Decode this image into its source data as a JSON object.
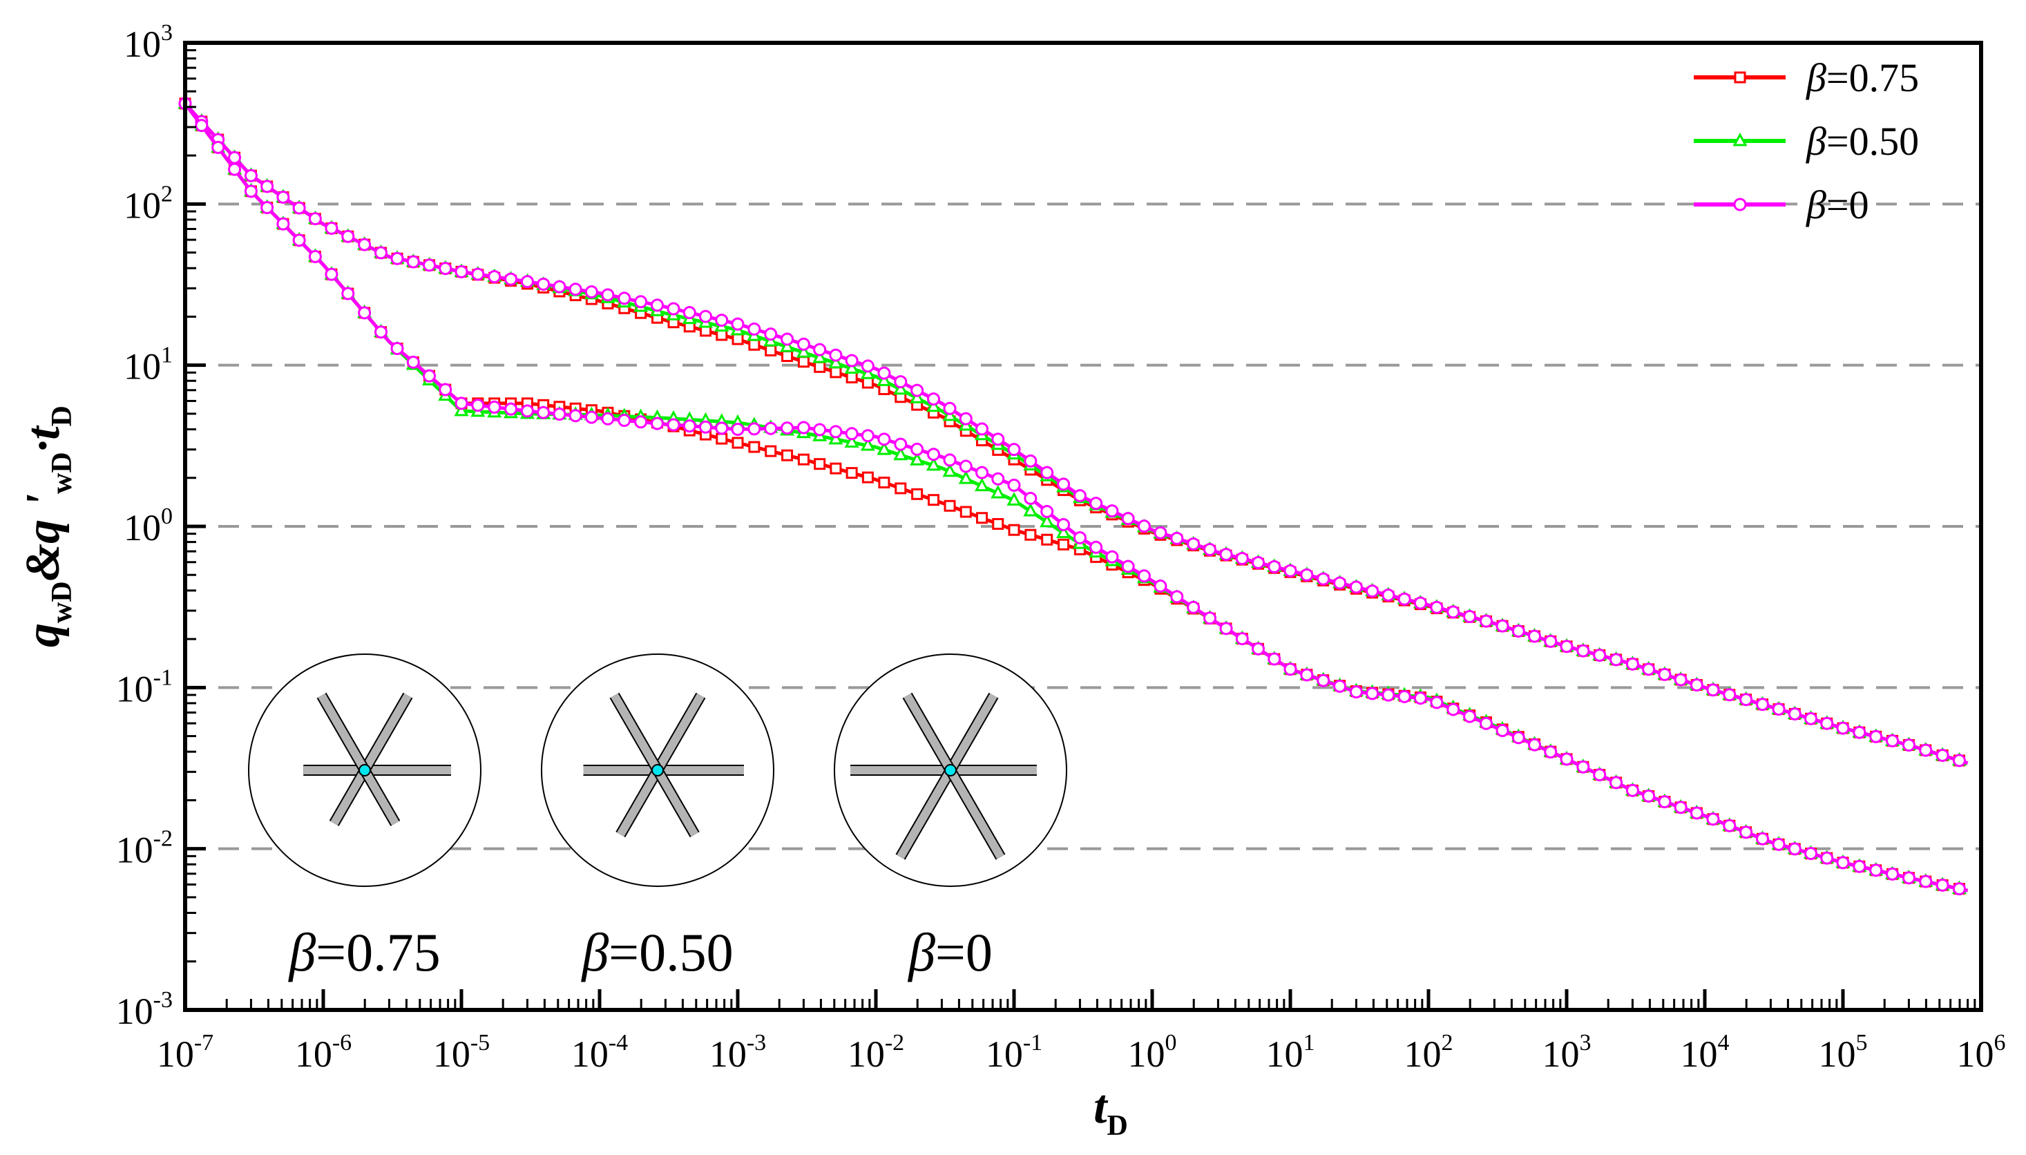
{
  "chart_data": {
    "type": "line",
    "title": "",
    "xlabel": {
      "main": "t",
      "sub": "D"
    },
    "ylabel": {
      "parts": [
        {
          "t": "q",
          "sub": "wD"
        },
        {
          "t": "&q",
          "sub": ""
        },
        {
          "t": " '",
          "sub": "wD"
        },
        {
          "t": "·t",
          "sub": "D"
        }
      ]
    },
    "xscale": "log",
    "yscale": "log",
    "xlim": [
      1e-07,
      1000000.0
    ],
    "ylim": [
      0.001,
      1000
    ],
    "x_ticks": [
      {
        "base": "10",
        "exp": "-7"
      },
      {
        "base": "10",
        "exp": "-6"
      },
      {
        "base": "10",
        "exp": "-5"
      },
      {
        "base": "10",
        "exp": "-4"
      },
      {
        "base": "10",
        "exp": "-3"
      },
      {
        "base": "10",
        "exp": "-2"
      },
      {
        "base": "10",
        "exp": "-1"
      },
      {
        "base": "10",
        "exp": "0"
      },
      {
        "base": "10",
        "exp": "1"
      },
      {
        "base": "10",
        "exp": "2"
      },
      {
        "base": "10",
        "exp": "3"
      },
      {
        "base": "10",
        "exp": "4"
      },
      {
        "base": "10",
        "exp": "5"
      },
      {
        "base": "10",
        "exp": "6"
      }
    ],
    "y_ticks": [
      {
        "base": "10",
        "exp": "-3"
      },
      {
        "base": "10",
        "exp": "-2"
      },
      {
        "base": "10",
        "exp": "-1"
      },
      {
        "base": "10",
        "exp": "0"
      },
      {
        "base": "10",
        "exp": "1"
      },
      {
        "base": "10",
        "exp": "2"
      },
      {
        "base": "10",
        "exp": "3"
      }
    ],
    "grid": "dashed horizontal at decades",
    "legend_position": "top-right",
    "series": [
      {
        "name": "β=0.75",
        "greek": "β",
        "value": "=0.75",
        "color": "#ff0000",
        "marker": "square",
        "curves": {
          "rate": [
            [
              1e-07,
              420
            ],
            [
              3e-07,
              150
            ],
            [
              1e-06,
              75
            ],
            [
              3e-06,
              47
            ],
            [
              1e-05,
              38
            ],
            [
              3e-05,
              32
            ],
            [
              0.0001,
              25
            ],
            [
              0.0003,
              19
            ],
            [
              0.001,
              14.5
            ],
            [
              0.003,
              10.5
            ],
            [
              0.01,
              7.5
            ],
            [
              0.03,
              4.8
            ],
            [
              0.1,
              2.6
            ],
            [
              0.3,
              1.45
            ],
            [
              1,
              0.92
            ],
            [
              3,
              0.68
            ],
            [
              10,
              0.52
            ],
            [
              30,
              0.41
            ],
            [
              100,
              0.32
            ],
            [
              300,
              0.25
            ],
            [
              1000,
              0.18
            ],
            [
              3000,
              0.14
            ],
            [
              10000.0,
              0.1
            ],
            [
              30000.0,
              0.076
            ],
            [
              100000.0,
              0.056
            ],
            [
              300000.0,
              0.044
            ],
            [
              800000.0,
              0.034
            ]
          ],
          "derivative": [
            [
              1e-07,
              420
            ],
            [
              3e-07,
              120
            ],
            [
              1e-06,
              42
            ],
            [
              3e-06,
              14
            ],
            [
              1e-05,
              5.8
            ],
            [
              3e-05,
              5.8
            ],
            [
              0.0001,
              5.2
            ],
            [
              0.0003,
              4.3
            ],
            [
              0.001,
              3.3
            ],
            [
              0.003,
              2.6
            ],
            [
              0.01,
              1.95
            ],
            [
              0.03,
              1.4
            ],
            [
              0.1,
              0.95
            ],
            [
              0.3,
              0.72
            ],
            [
              1,
              0.44
            ],
            [
              3,
              0.25
            ],
            [
              10,
              0.13
            ],
            [
              30,
              0.095
            ],
            [
              100,
              0.086
            ],
            [
              300,
              0.058
            ],
            [
              1000,
              0.036
            ],
            [
              3000,
              0.023
            ],
            [
              10000.0,
              0.016
            ],
            [
              30000.0,
              0.011
            ],
            [
              100000.0,
              0.0082
            ],
            [
              300000.0,
              0.0066
            ],
            [
              800000.0,
              0.0055
            ]
          ]
        }
      },
      {
        "name": "β=0.50",
        "greek": "β",
        "value": "=0.50",
        "color": "#00ee00",
        "marker": "triangle",
        "curves": {
          "rate": [
            [
              1e-07,
              420
            ],
            [
              3e-07,
              150
            ],
            [
              1e-06,
              75
            ],
            [
              3e-06,
              47
            ],
            [
              1e-05,
              38
            ],
            [
              3e-05,
              33
            ],
            [
              0.0001,
              27
            ],
            [
              0.0003,
              21
            ],
            [
              0.001,
              16.5
            ],
            [
              0.003,
              12
            ],
            [
              0.01,
              8.5
            ],
            [
              0.03,
              5.2
            ],
            [
              0.1,
              2.8
            ],
            [
              0.3,
              1.5
            ],
            [
              1,
              0.94
            ],
            [
              3,
              0.69
            ],
            [
              10,
              0.53
            ],
            [
              30,
              0.42
            ],
            [
              100,
              0.325
            ],
            [
              300,
              0.25
            ],
            [
              1000,
              0.18
            ],
            [
              3000,
              0.14
            ],
            [
              10000.0,
              0.1
            ],
            [
              30000.0,
              0.076
            ],
            [
              100000.0,
              0.056
            ],
            [
              300000.0,
              0.044
            ],
            [
              800000.0,
              0.034
            ]
          ],
          "derivative": [
            [
              1e-07,
              420
            ],
            [
              3e-07,
              120
            ],
            [
              1e-06,
              42
            ],
            [
              3e-06,
              14
            ],
            [
              1e-05,
              5.2
            ],
            [
              3e-05,
              5.0
            ],
            [
              0.0001,
              4.9
            ],
            [
              0.0003,
              4.7
            ],
            [
              0.001,
              4.4
            ],
            [
              0.003,
              3.8
            ],
            [
              0.01,
              3.1
            ],
            [
              0.03,
              2.3
            ],
            [
              0.1,
              1.45
            ],
            [
              0.3,
              0.78
            ],
            [
              1,
              0.45
            ],
            [
              3,
              0.25
            ],
            [
              10,
              0.13
            ],
            [
              30,
              0.095
            ],
            [
              100,
              0.087
            ],
            [
              300,
              0.058
            ],
            [
              1000,
              0.036
            ],
            [
              3000,
              0.023
            ],
            [
              10000.0,
              0.016
            ],
            [
              30000.0,
              0.011
            ],
            [
              100000.0,
              0.0082
            ],
            [
              300000.0,
              0.0066
            ],
            [
              800000.0,
              0.0055
            ]
          ]
        }
      },
      {
        "name": "β=0",
        "greek": "β",
        "value": "=0",
        "color": "#ff00ff",
        "marker": "circle",
        "curves": {
          "rate": [
            [
              1e-07,
              420
            ],
            [
              3e-07,
              150
            ],
            [
              1e-06,
              75
            ],
            [
              3e-06,
              47
            ],
            [
              1e-05,
              38
            ],
            [
              3e-05,
              33
            ],
            [
              0.0001,
              28
            ],
            [
              0.0003,
              23
            ],
            [
              0.001,
              18
            ],
            [
              0.003,
              13.5
            ],
            [
              0.01,
              9.5
            ],
            [
              0.03,
              5.8
            ],
            [
              0.1,
              3.0
            ],
            [
              0.3,
              1.55
            ],
            [
              1,
              0.95
            ],
            [
              3,
              0.69
            ],
            [
              10,
              0.53
            ],
            [
              30,
              0.42
            ],
            [
              100,
              0.325
            ],
            [
              300,
              0.25
            ],
            [
              1000,
              0.18
            ],
            [
              3000,
              0.14
            ],
            [
              10000.0,
              0.1
            ],
            [
              30000.0,
              0.076
            ],
            [
              100000.0,
              0.056
            ],
            [
              300000.0,
              0.044
            ],
            [
              800000.0,
              0.034
            ]
          ],
          "derivative": [
            [
              1e-07,
              420
            ],
            [
              3e-07,
              120
            ],
            [
              1e-06,
              42
            ],
            [
              3e-06,
              14
            ],
            [
              1e-05,
              5.8
            ],
            [
              3e-05,
              5.2
            ],
            [
              0.0001,
              4.7
            ],
            [
              0.0003,
              4.3
            ],
            [
              0.001,
              4.0
            ],
            [
              0.003,
              4.1
            ],
            [
              0.01,
              3.6
            ],
            [
              0.03,
              2.7
            ],
            [
              0.1,
              1.8
            ],
            [
              0.3,
              0.85
            ],
            [
              1,
              0.46
            ],
            [
              3,
              0.25
            ],
            [
              10,
              0.13
            ],
            [
              30,
              0.094
            ],
            [
              100,
              0.085
            ],
            [
              300,
              0.057
            ],
            [
              1000,
              0.036
            ],
            [
              3000,
              0.023
            ],
            [
              10000.0,
              0.016
            ],
            [
              30000.0,
              0.011
            ],
            [
              100000.0,
              0.0082
            ],
            [
              300000.0,
              0.0066
            ],
            [
              800000.0,
              0.0055
            ]
          ]
        }
      }
    ],
    "insets": [
      {
        "greek": "β",
        "value": "=0.75",
        "beta": 0.75
      },
      {
        "greek": "β",
        "value": "=0.50",
        "beta": 0.5
      },
      {
        "greek": "β",
        "value": "=0",
        "beta": 0
      }
    ],
    "colors": {
      "axis": "#000000",
      "grid": "#999999",
      "fracture_fill": "#b4b4b4",
      "well": "#00e5ee"
    }
  }
}
